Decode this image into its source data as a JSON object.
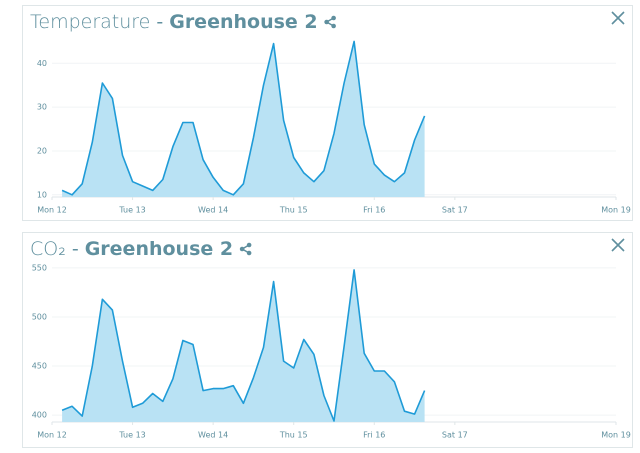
{
  "chart_data": [
    {
      "type": "area",
      "title": "Temperature",
      "separator": "-",
      "location": "Greenhouse 2",
      "x": [
        3,
        6,
        9,
        12,
        15,
        18,
        21,
        24,
        27,
        30,
        33,
        36,
        39,
        42,
        45,
        48,
        51,
        54,
        57,
        60,
        63,
        66,
        69,
        72,
        75,
        78,
        81,
        84,
        87,
        90,
        93,
        96,
        99,
        102,
        105,
        108,
        111
      ],
      "series": [
        {
          "color": "#1f9bd7",
          "fill": "#b9e2f4",
          "values": [
            11,
            10,
            12.5,
            22,
            35.5,
            32,
            19,
            13,
            12,
            11,
            13.5,
            21,
            26.5,
            26.5,
            18,
            14,
            11,
            10,
            12.5,
            23,
            35,
            44.5,
            27,
            18.5,
            15,
            13,
            15.5,
            24,
            35.5,
            45,
            26,
            17,
            14.5,
            13,
            15,
            22.5,
            28
          ]
        }
      ],
      "xlim": [
        0,
        168
      ],
      "xticks": [
        {
          "value": 0,
          "label": "Mon 12"
        },
        {
          "value": 24,
          "label": "Tue 13"
        },
        {
          "value": 48,
          "label": "Wed 14"
        },
        {
          "value": 72,
          "label": "Thu 15"
        },
        {
          "value": 96,
          "label": "Fri 16"
        },
        {
          "value": 120,
          "label": "Sat 17"
        },
        {
          "value": 168,
          "label": "Mon 19"
        }
      ],
      "ylim": [
        9.5,
        46
      ],
      "yticks": [
        10,
        20,
        30,
        40
      ],
      "grid": true
    },
    {
      "type": "area",
      "title": "CO₂",
      "separator": "-",
      "location": "Greenhouse 2",
      "x": [
        3,
        6,
        9,
        12,
        15,
        18,
        21,
        24,
        27,
        30,
        33,
        36,
        39,
        42,
        45,
        48,
        51,
        54,
        57,
        60,
        63,
        66,
        69,
        72,
        75,
        78,
        81,
        84,
        87,
        90,
        93,
        96,
        99,
        102,
        105,
        108,
        111
      ],
      "series": [
        {
          "color": "#1f9bd7",
          "fill": "#b9e2f4",
          "values": [
            405,
            409,
            399,
            450,
            518,
            507,
            455,
            408,
            412,
            422,
            414,
            437,
            476,
            472,
            425,
            427,
            427,
            430,
            412,
            438,
            469,
            536,
            455,
            448,
            477,
            462,
            420,
            394,
            470,
            548,
            463,
            445,
            445,
            434,
            404,
            401,
            425
          ]
        }
      ],
      "xlim": [
        0,
        168
      ],
      "xticks": [
        {
          "value": 0,
          "label": "Mon 12"
        },
        {
          "value": 24,
          "label": "Tue 13"
        },
        {
          "value": 48,
          "label": "Wed 14"
        },
        {
          "value": 72,
          "label": "Thu 15"
        },
        {
          "value": 96,
          "label": "Fri 16"
        },
        {
          "value": 120,
          "label": "Sat 17"
        },
        {
          "value": 168,
          "label": "Mon 19"
        }
      ],
      "ylim": [
        393,
        556
      ],
      "yticks": [
        400,
        450,
        500,
        550
      ],
      "grid": true
    }
  ]
}
